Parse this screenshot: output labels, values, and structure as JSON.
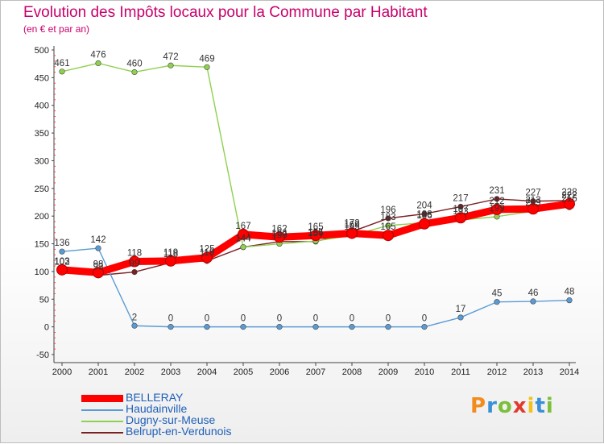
{
  "header": {
    "title": "Evolution des Impôts locaux pour la Commune par Habitant",
    "subtitle": "(en € et par an)"
  },
  "logo": {
    "text": "Proxiti",
    "letters": [
      "P",
      "r",
      "o",
      "x",
      "i",
      "t",
      "i"
    ],
    "colors": [
      "#f28c1c",
      "#3a8fd6",
      "#7bbf3a",
      "#e03a2f",
      "#f2c11c",
      "#3a8fd6",
      "#7bbf3a"
    ]
  },
  "chart_data": {
    "type": "line",
    "title": "Evolution des Impôts locaux pour la Commune par Habitant",
    "subtitle": "(en € et par an)",
    "x": [
      2000,
      2001,
      2002,
      2003,
      2004,
      2005,
      2006,
      2007,
      2008,
      2009,
      2010,
      2011,
      2012,
      2013,
      2014
    ],
    "ylim": [
      -50,
      500
    ],
    "yticks": [
      -50,
      0,
      50,
      100,
      150,
      200,
      250,
      300,
      350,
      400,
      450,
      500
    ],
    "grid": false,
    "legend_position": "bottom-left",
    "series": [
      {
        "name": "BELLERAY",
        "color": "#ff0000",
        "values": [
          103,
          98,
          118,
          119,
          125,
          167,
          162,
          165,
          169,
          165,
          186,
          197,
          212,
          213,
          222
        ]
      },
      {
        "name": "Haudainville",
        "color": "#5b9bd5",
        "values": [
          136,
          142,
          2,
          0,
          0,
          0,
          0,
          0,
          0,
          0,
          0,
          17,
          45,
          46,
          48
        ]
      },
      {
        "name": "Dugny-sur-Meuse",
        "color": "#8fd14f",
        "values": [
          461,
          476,
          460,
          472,
          469,
          144,
          150,
          155,
          165,
          183,
          188,
          193,
          199,
          209,
          216
        ]
      },
      {
        "name": "Belrupt-en-Verdunois",
        "color": "#7a1f22",
        "values": [
          102,
          93,
          99,
          116,
          119,
          144,
          154,
          154,
          172,
          196,
          204,
          217,
          231,
          227,
          228
        ]
      }
    ]
  }
}
